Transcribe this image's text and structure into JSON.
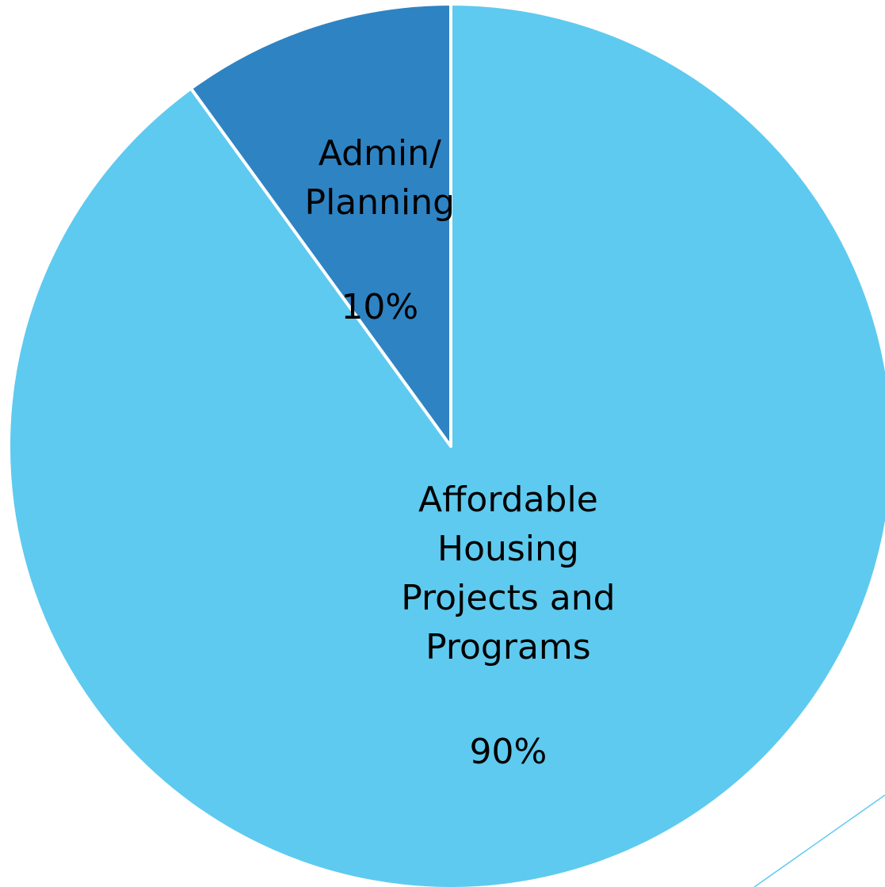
{
  "chart_data": {
    "type": "pie",
    "title": "",
    "start_angle_deg": 0,
    "direction": "counterclockwise",
    "slices": [
      {
        "label": "Affordable Housing Projects and Programs",
        "label_lines": [
          "Affordable",
          "Housing",
          "Projects and",
          "Programs"
        ],
        "value": 90,
        "value_label": "90%",
        "color": "#5ECAEF"
      },
      {
        "label": "Admin/ Planning",
        "label_lines": [
          "Admin/",
          "Planning"
        ],
        "value": 10,
        "value_label": "10%",
        "color": "#2E83C3"
      }
    ],
    "legend": "none",
    "slice_border_color": "#FFFFFF"
  }
}
